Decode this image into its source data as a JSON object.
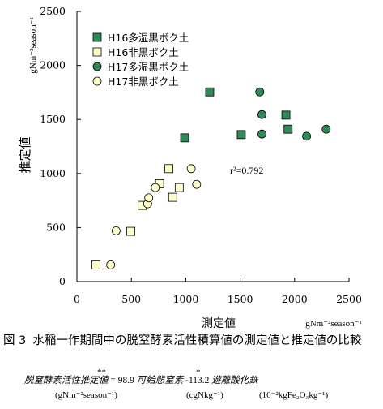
{
  "chart_data": {
    "type": "scatter",
    "xlabel": "測定値",
    "ylabel": "推定値",
    "x_unit": "gNm⁻²season⁻¹",
    "y_unit": "gNm⁻²season⁻¹",
    "xlim": [
      0,
      2500
    ],
    "ylim": [
      0,
      2500
    ],
    "x_ticks": [
      "0",
      "500",
      "1000",
      "1500",
      "2000",
      "2500"
    ],
    "y_ticks": [
      "0",
      "500",
      "1000",
      "1500",
      "2000",
      "2500"
    ],
    "annotation": "r²=0.792",
    "legend_position": "top-left",
    "grid": false,
    "series": [
      {
        "name": "H16多湿黒ボク土",
        "marker": "square",
        "fill": "#2e8b57",
        "points": [
          [
            1220,
            1755
          ],
          [
            990,
            1330
          ],
          [
            1510,
            1360
          ],
          [
            1920,
            1540
          ],
          [
            1940,
            1410
          ]
        ]
      },
      {
        "name": "H16非黒ボク土",
        "marker": "square",
        "fill": "#ffffcc",
        "points": [
          [
            175,
            155
          ],
          [
            495,
            465
          ],
          [
            600,
            705
          ],
          [
            760,
            905
          ],
          [
            845,
            1045
          ],
          [
            880,
            780
          ],
          [
            940,
            870
          ]
        ]
      },
      {
        "name": "H17多湿黒ボク土",
        "marker": "circle",
        "fill": "#2e8b57",
        "points": [
          [
            1680,
            1755
          ],
          [
            1700,
            1545
          ],
          [
            1700,
            1365
          ],
          [
            2110,
            1345
          ],
          [
            2290,
            1410
          ]
        ]
      },
      {
        "name": "H17非黒ボク土",
        "marker": "circle",
        "fill": "#ffffcc",
        "points": [
          [
            310,
            155
          ],
          [
            360,
            470
          ],
          [
            650,
            720
          ],
          [
            660,
            775
          ],
          [
            720,
            870
          ],
          [
            1050,
            1045
          ],
          [
            1100,
            900
          ]
        ]
      }
    ]
  },
  "caption": {
    "figure_number": "図 3",
    "text": "水稲一作期間中の脱窒酵素活性積算値の測定値と推定値の比較"
  },
  "formula": {
    "lhs": "脱窒酵素活性推定値",
    "eq": " = 98.9 ",
    "term1": "可給態窒素",
    "eq2": " -113.2 ",
    "term2": "遊離酸化鉄",
    "star1": "**",
    "star2": "*",
    "unit_lhs": "(gNm⁻²season⁻¹)",
    "unit_1": "(cgNkg⁻¹)",
    "unit_2": "(10⁻²kgFe₂O₃kg⁻¹)"
  }
}
